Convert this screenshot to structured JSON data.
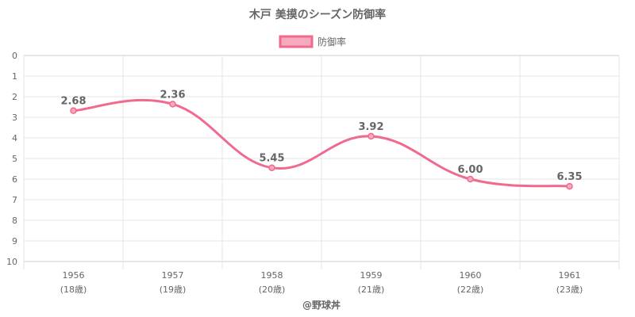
{
  "chart_data": {
    "type": "line",
    "title": "木戸 美摸のシーズン防御率",
    "legend_position": "top",
    "x_categories": [
      [
        "1956",
        "(18歳)"
      ],
      [
        "1957",
        "(19歳)"
      ],
      [
        "1958",
        "(20歳)"
      ],
      [
        "1959",
        "(21歳)"
      ],
      [
        "1960",
        "(22歳)"
      ],
      [
        "1961",
        "(23歳)"
      ]
    ],
    "series": [
      {
        "name": "防御率",
        "values": [
          2.68,
          2.36,
          5.45,
          3.92,
          6.0,
          6.35
        ],
        "labels": [
          "2.68",
          "2.36",
          "5.45",
          "3.92",
          "6.00",
          "6.35"
        ],
        "color": "#f06a8d",
        "fill": "#f7a9bd"
      }
    ],
    "y_axis": {
      "min": 0,
      "max": 10,
      "step": 1,
      "reversed": true,
      "ticks": [
        "0",
        "1",
        "2",
        "3",
        "4",
        "5",
        "6",
        "7",
        "8",
        "9",
        "10"
      ]
    },
    "grid": true
  },
  "footer": "@野球丼"
}
